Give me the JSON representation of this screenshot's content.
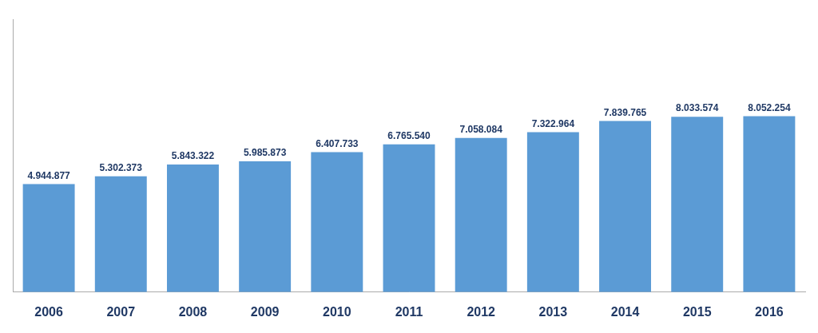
{
  "chart_data": {
    "type": "bar",
    "categories": [
      "2006",
      "2007",
      "2008",
      "2009",
      "2010",
      "2011",
      "2012",
      "2013",
      "2014",
      "2015",
      "2016"
    ],
    "values": [
      4944877,
      5302373,
      5843322,
      5985873,
      6407733,
      6765540,
      7058084,
      7322964,
      7839765,
      8033574,
      8052254
    ],
    "value_labels": [
      "4.944.877",
      "5.302.373",
      "5.843.322",
      "5.985.873",
      "6.407.733",
      "6.765.540",
      "7.058.084",
      "7.322.964",
      "7.839.765",
      "8.033.574",
      "8.052.254"
    ],
    "color": "#5B9BD5",
    "ylim": [
      0,
      12500000
    ],
    "data_labels": true,
    "tick_labels": "x",
    "grid": false
  }
}
